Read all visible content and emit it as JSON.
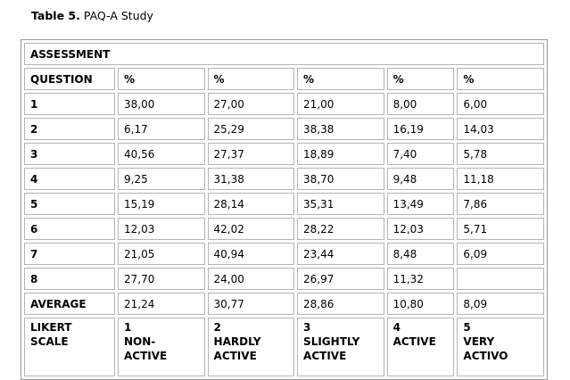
{
  "caption": {
    "label": "Table 5.",
    "title": "PAQ-A Study"
  },
  "table": {
    "section": "ASSESSMENT",
    "header": [
      "QUESTION",
      "%",
      "%",
      "%",
      "%",
      "%"
    ],
    "rows": [
      [
        "1",
        "38,00",
        "27,00",
        "21,00",
        "8,00",
        "6,00"
      ],
      [
        "2",
        "6,17",
        "25,29",
        "38,38",
        "16,19",
        "14,03"
      ],
      [
        "3",
        "40,56",
        "27,37",
        "18,89",
        "7,40",
        "5,78"
      ],
      [
        "4",
        "9,25",
        "31,38",
        "38,70",
        "9,48",
        "11,18"
      ],
      [
        "5",
        "15,19",
        "28,14",
        "35,31",
        "13,49",
        "7,86"
      ],
      [
        "6",
        "12,03",
        "42,02",
        "28,22",
        "12,03",
        "5,71"
      ],
      [
        "7",
        "21,05",
        "40,94",
        "23,44",
        "8,48",
        "6,09"
      ],
      [
        "8",
        "27,70",
        "24,00",
        "26,97",
        "11,32",
        null
      ]
    ],
    "average": [
      "AVERAGE",
      "21,24",
      "30,77",
      "28,86",
      "10,80",
      "8,09"
    ],
    "likert": {
      "label": "LIKERT SCALE",
      "levels": [
        {
          "number": "1",
          "label": "NON-ACTIVE"
        },
        {
          "number": "2",
          "label": "HARDLY ACTIVE"
        },
        {
          "number": "3",
          "label": "SLIGHTLY ACTIVE"
        },
        {
          "number": "4",
          "label": "ACTIVE"
        },
        {
          "number": "5",
          "label": "VERY ACTIVO"
        }
      ]
    }
  }
}
